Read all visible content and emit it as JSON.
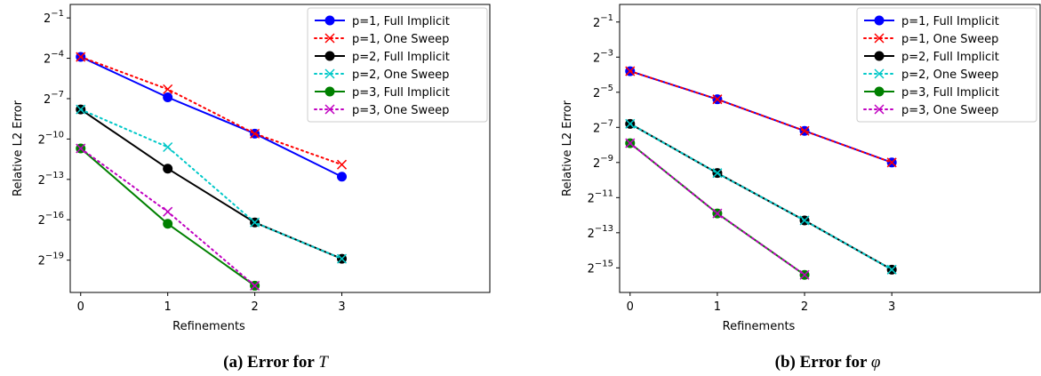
{
  "chart_data": [
    {
      "type": "line",
      "caption_label": "(a) Error for ",
      "caption_symbol": "T",
      "xlabel": "Refinements",
      "ylabel": "Relative L2 Error",
      "ylog_base": 2,
      "xlim": [
        -0.12,
        4.7
      ],
      "ylim": [
        -21.4,
        0
      ],
      "x_ticks": [
        0,
        1,
        2,
        3
      ],
      "y_ticks": [
        {
          "exp": -1,
          "label": "-1"
        },
        {
          "exp": -4,
          "label": "-4"
        },
        {
          "exp": -7,
          "label": "-7"
        },
        {
          "exp": -10,
          "label": "-10"
        },
        {
          "exp": -13,
          "label": "-13"
        },
        {
          "exp": -16,
          "label": "-16"
        },
        {
          "exp": -19,
          "label": "-19"
        }
      ],
      "legend_position": "top-right",
      "series": [
        {
          "name": "p=1, Full Implicit",
          "color": "#0000ff",
          "style": "solid",
          "marker": "circle",
          "x": [
            0,
            1,
            2,
            3
          ],
          "y_log2": [
            -3.9,
            -6.9,
            -9.6,
            -12.8
          ]
        },
        {
          "name": "p=1, One Sweep",
          "color": "#ff0000",
          "style": "dotted",
          "marker": "x",
          "x": [
            0,
            1,
            2,
            3
          ],
          "y_log2": [
            -3.9,
            -6.3,
            -9.6,
            -11.9
          ]
        },
        {
          "name": "p=2, Full Implicit",
          "color": "#000000",
          "style": "solid",
          "marker": "circle",
          "x": [
            0,
            1,
            2,
            3
          ],
          "y_log2": [
            -7.8,
            -12.2,
            -16.2,
            -18.9
          ]
        },
        {
          "name": "p=2, One Sweep",
          "color": "#00c8c8",
          "style": "dotted",
          "marker": "x",
          "x": [
            0,
            1,
            2,
            3
          ],
          "y_log2": [
            -7.8,
            -10.6,
            -16.2,
            -18.9
          ]
        },
        {
          "name": "p=3, Full Implicit",
          "color": "#008000",
          "style": "solid",
          "marker": "circle",
          "x": [
            0,
            1,
            2
          ],
          "y_log2": [
            -10.7,
            -16.3,
            -20.9
          ]
        },
        {
          "name": "p=3, One Sweep",
          "color": "#c000c0",
          "style": "dotted",
          "marker": "x",
          "x": [
            0,
            1,
            2
          ],
          "y_log2": [
            -10.7,
            -15.4,
            -20.9
          ]
        }
      ]
    },
    {
      "type": "line",
      "caption_label": "(b) Error for ",
      "caption_symbol": "φ",
      "xlabel": "Refinements",
      "ylabel": "Relative L2 Error",
      "ylog_base": 2,
      "xlim": [
        -0.12,
        4.7
      ],
      "ylim": [
        -16.4,
        0
      ],
      "x_ticks": [
        0,
        1,
        2,
        3
      ],
      "y_ticks": [
        {
          "exp": -1,
          "label": "-1"
        },
        {
          "exp": -3,
          "label": "-3"
        },
        {
          "exp": -5,
          "label": "-5"
        },
        {
          "exp": -7,
          "label": "-7"
        },
        {
          "exp": -9,
          "label": "-9"
        },
        {
          "exp": -11,
          "label": "-11"
        },
        {
          "exp": -13,
          "label": "-13"
        },
        {
          "exp": -15,
          "label": "-15"
        }
      ],
      "legend_position": "top-right",
      "series": [
        {
          "name": "p=1, Full Implicit",
          "color": "#0000ff",
          "style": "solid",
          "marker": "circle",
          "x": [
            0,
            1,
            2,
            3
          ],
          "y_log2": [
            -3.8,
            -5.4,
            -7.2,
            -9.0
          ]
        },
        {
          "name": "p=1, One Sweep",
          "color": "#ff0000",
          "style": "dotted",
          "marker": "x",
          "x": [
            0,
            1,
            2,
            3
          ],
          "y_log2": [
            -3.8,
            -5.4,
            -7.2,
            -9.0
          ]
        },
        {
          "name": "p=2, Full Implicit",
          "color": "#000000",
          "style": "solid",
          "marker": "circle",
          "x": [
            0,
            1,
            2,
            3
          ],
          "y_log2": [
            -6.8,
            -9.6,
            -12.3,
            -15.1
          ]
        },
        {
          "name": "p=2, One Sweep",
          "color": "#00c8c8",
          "style": "dotted",
          "marker": "x",
          "x": [
            0,
            1,
            2,
            3
          ],
          "y_log2": [
            -6.8,
            -9.6,
            -12.3,
            -15.1
          ]
        },
        {
          "name": "p=3, Full Implicit",
          "color": "#008000",
          "style": "solid",
          "marker": "circle",
          "x": [
            0,
            1,
            2
          ],
          "y_log2": [
            -7.9,
            -11.9,
            -15.4
          ]
        },
        {
          "name": "p=3, One Sweep",
          "color": "#c000c0",
          "style": "dotted",
          "marker": "x",
          "x": [
            0,
            1,
            2
          ],
          "y_log2": [
            -7.9,
            -11.9,
            -15.4
          ]
        }
      ]
    }
  ]
}
